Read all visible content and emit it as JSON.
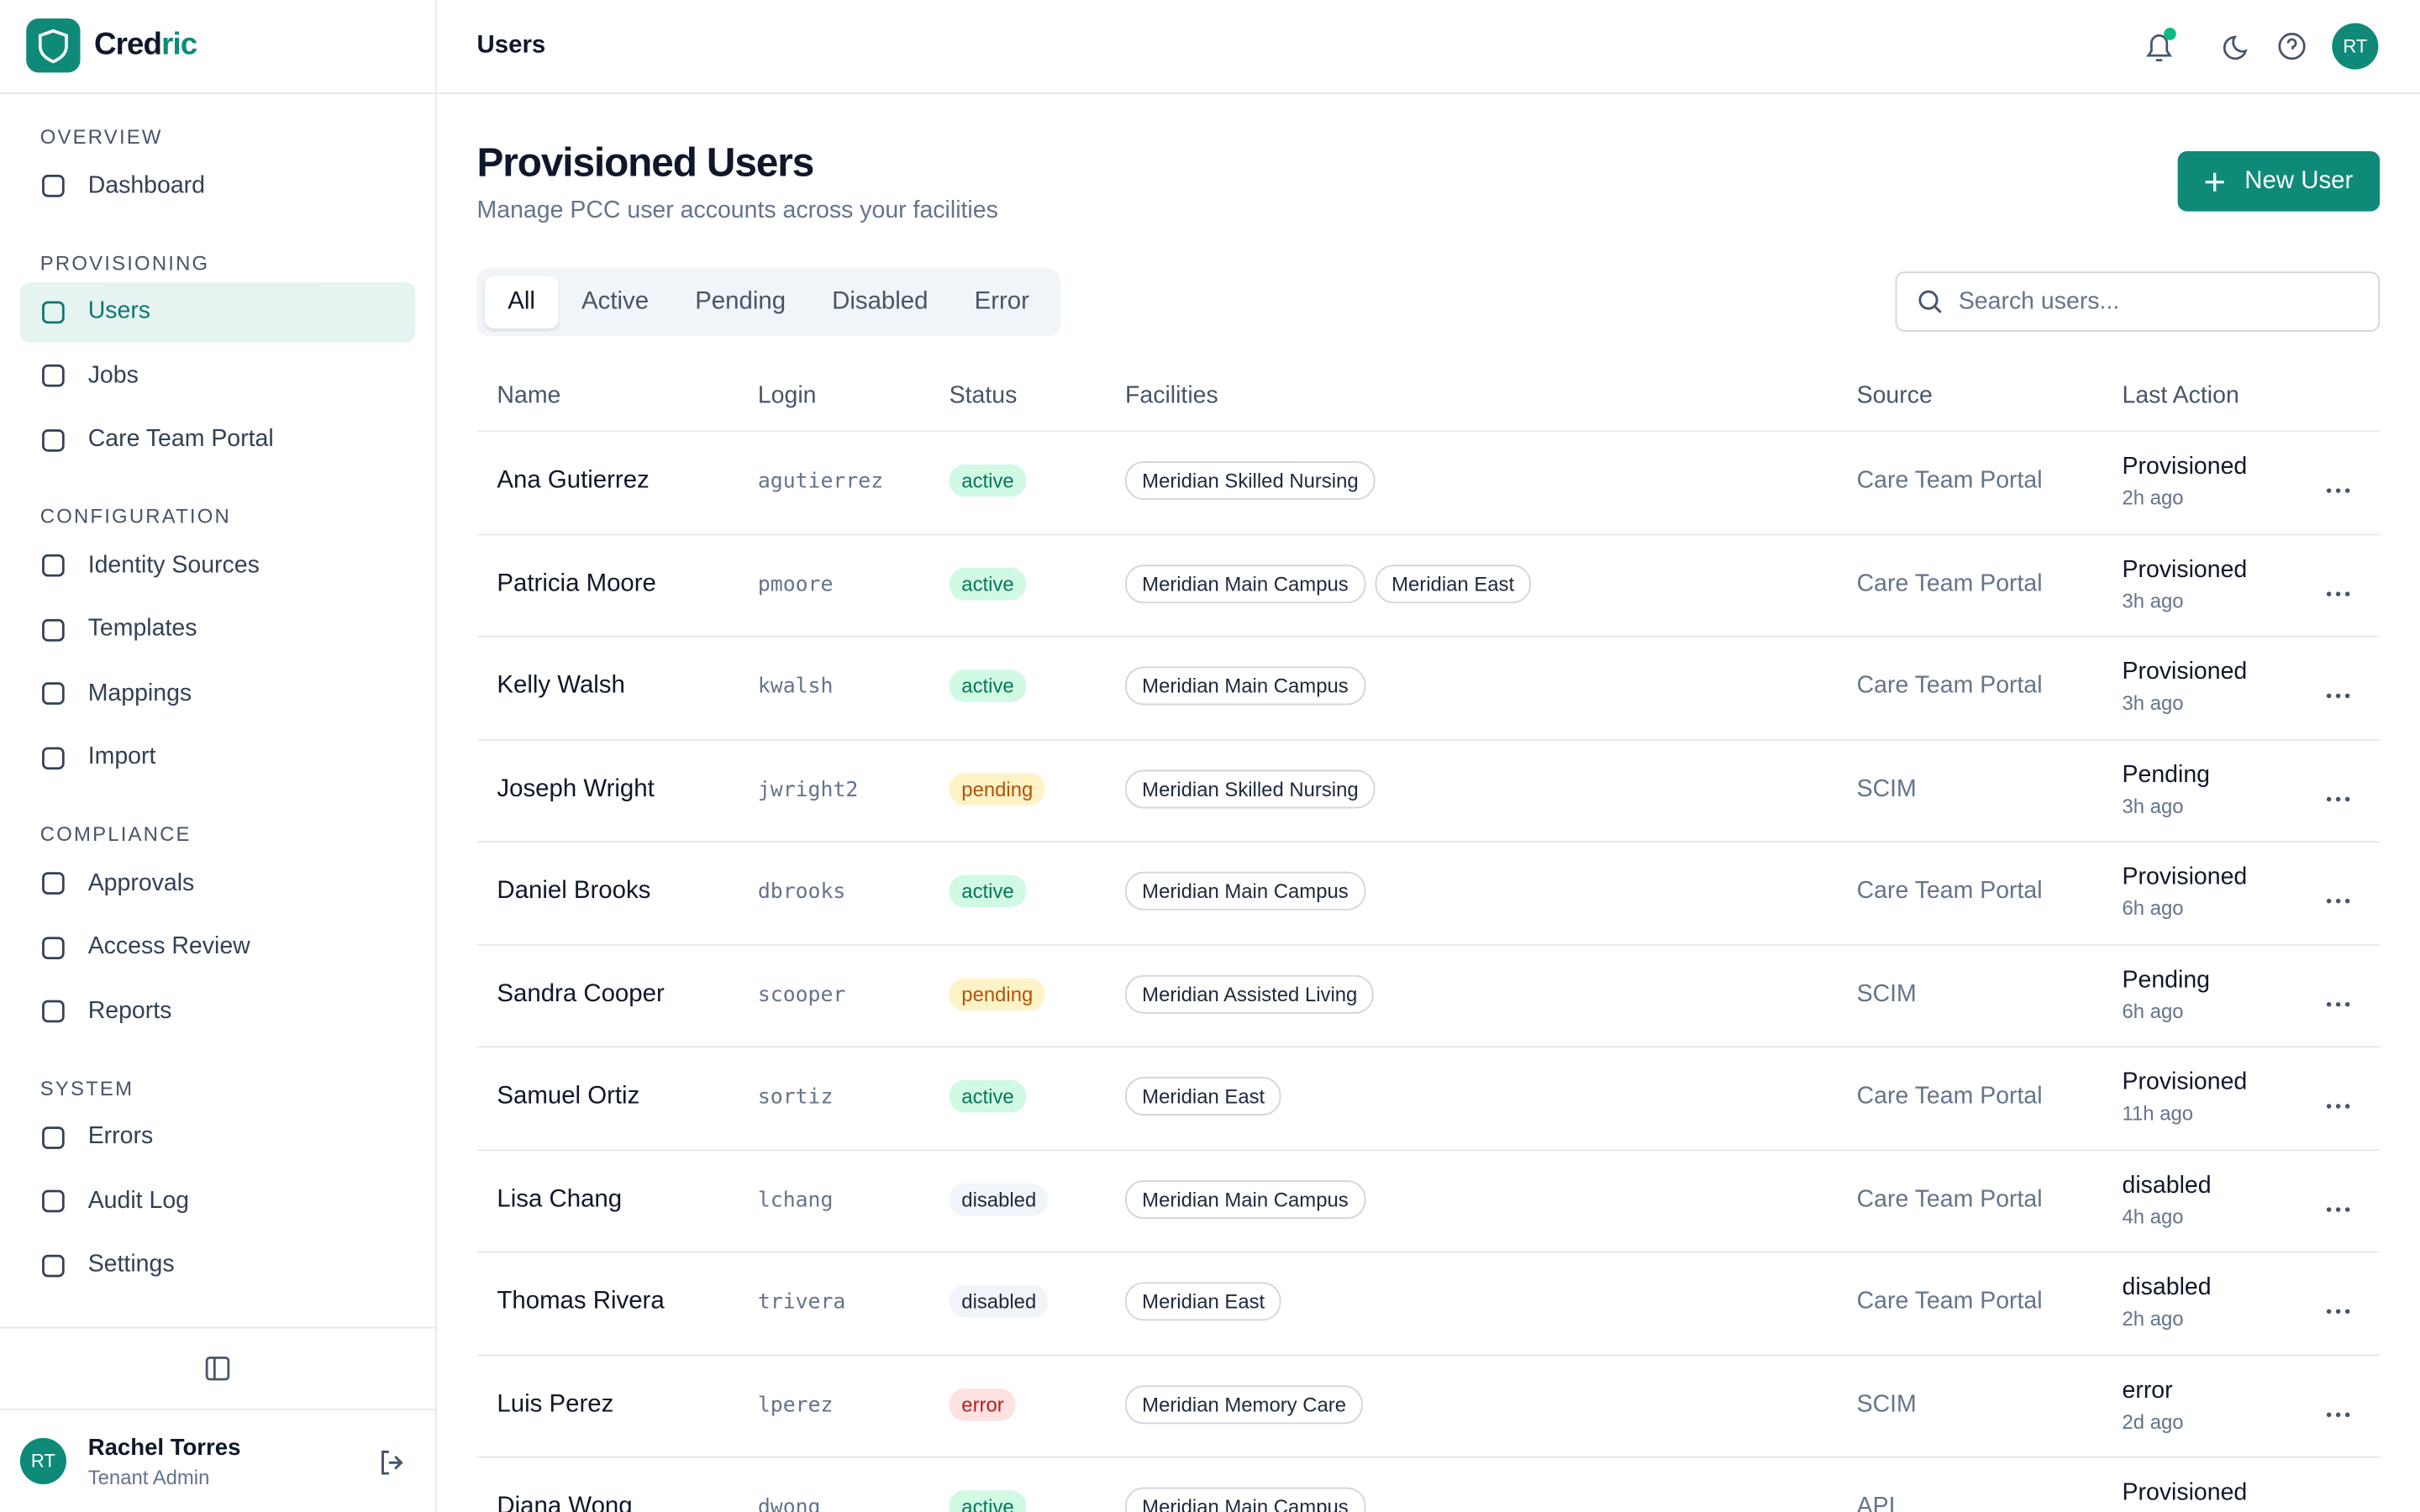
{
  "brand": {
    "parts": [
      "Cred",
      "ric"
    ]
  },
  "header": {
    "title": "Users",
    "avatar": "RT"
  },
  "sidebar": {
    "sections": [
      {
        "title": "OVERVIEW",
        "items": [
          "Dashboard"
        ]
      },
      {
        "title": "PROVISIONING",
        "items": [
          "Users",
          "Jobs",
          "Care Team Portal"
        ]
      },
      {
        "title": "CONFIGURATION",
        "items": [
          "Identity Sources",
          "Templates",
          "Mappings",
          "Import"
        ]
      },
      {
        "title": "COMPLIANCE",
        "items": [
          "Approvals",
          "Access Review",
          "Reports"
        ]
      },
      {
        "title": "SYSTEM",
        "items": [
          "Errors",
          "Audit Log",
          "Settings"
        ]
      }
    ],
    "active": "Users",
    "user": {
      "initials": "RT",
      "name": "Rachel Torres",
      "role": "Tenant Admin"
    }
  },
  "page": {
    "title": "Provisioned Users",
    "subtitle": "Manage PCC user accounts across your facilities",
    "button": "New User",
    "tabs": [
      "All",
      "Active",
      "Pending",
      "Disabled",
      "Error"
    ],
    "search_placeholder": "Search users..."
  },
  "table": {
    "columns": [
      "Name",
      "Login",
      "Status",
      "Facilities",
      "Source",
      "Last Action"
    ],
    "rows": [
      {
        "name": "Ana Gutierrez",
        "login": "agutierrez",
        "status": "active",
        "facilities": [
          "Meridian Skilled Nursing"
        ],
        "source": "Care Team Portal",
        "action": "Provisioned",
        "time": "2h ago"
      },
      {
        "name": "Patricia Moore",
        "login": "pmoore",
        "status": "active",
        "facilities": [
          "Meridian Main Campus",
          "Meridian East"
        ],
        "source": "Care Team Portal",
        "action": "Provisioned",
        "time": "3h ago"
      },
      {
        "name": "Kelly Walsh",
        "login": "kwalsh",
        "status": "active",
        "facilities": [
          "Meridian Main Campus"
        ],
        "source": "Care Team Portal",
        "action": "Provisioned",
        "time": "3h ago"
      },
      {
        "name": "Joseph Wright",
        "login": "jwright2",
        "status": "pending",
        "facilities": [
          "Meridian Skilled Nursing"
        ],
        "source": "SCIM",
        "action": "Pending",
        "time": "3h ago"
      },
      {
        "name": "Daniel Brooks",
        "login": "dbrooks",
        "status": "active",
        "facilities": [
          "Meridian Main Campus"
        ],
        "source": "Care Team Portal",
        "action": "Provisioned",
        "time": "6h ago"
      },
      {
        "name": "Sandra Cooper",
        "login": "scooper",
        "status": "pending",
        "facilities": [
          "Meridian Assisted Living"
        ],
        "source": "SCIM",
        "action": "Pending",
        "time": "6h ago"
      },
      {
        "name": "Samuel Ortiz",
        "login": "sortiz",
        "status": "active",
        "facilities": [
          "Meridian East"
        ],
        "source": "Care Team Portal",
        "action": "Provisioned",
        "time": "11h ago"
      },
      {
        "name": "Lisa Chang",
        "login": "lchang",
        "status": "disabled",
        "facilities": [
          "Meridian Main Campus"
        ],
        "source": "Care Team Portal",
        "action": "disabled",
        "time": "4h ago"
      },
      {
        "name": "Thomas Rivera",
        "login": "trivera",
        "status": "disabled",
        "facilities": [
          "Meridian East"
        ],
        "source": "Care Team Portal",
        "action": "disabled",
        "time": "2h ago"
      },
      {
        "name": "Luis Perez",
        "login": "lperez",
        "status": "error",
        "facilities": [
          "Meridian Memory Care"
        ],
        "source": "SCIM",
        "action": "error",
        "time": "2d ago"
      },
      {
        "name": "Diana Wong",
        "login": "dwong",
        "status": "active",
        "facilities": [
          "Meridian Main Campus"
        ],
        "source": "API",
        "action": "Provisioned"
      }
    ]
  }
}
